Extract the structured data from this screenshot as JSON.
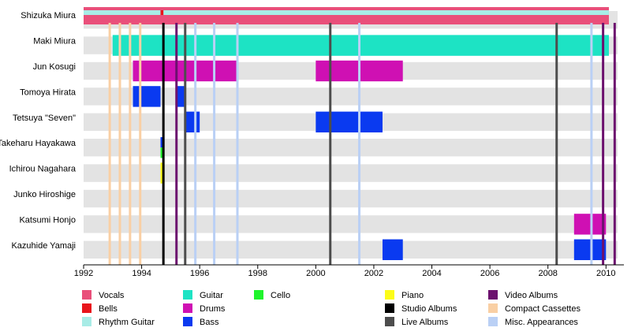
{
  "chart_data": {
    "type": "timeline",
    "title": "",
    "xlabel": "",
    "ylabel": "",
    "xlim": [
      1992,
      2010.4
    ],
    "x_ticks": [
      "1992",
      "1994",
      "1996",
      "1998",
      "2000",
      "2002",
      "2004",
      "2006",
      "2008",
      "2010"
    ],
    "grid": true,
    "legend_position": "bottom",
    "colors": {
      "Vocals": "#e94f7a",
      "Bells": "#e8141b",
      "Rhythm Guitar": "#a8ece6",
      "Guitar": "#1de3c4",
      "Drums": "#cf10b3",
      "Cello": "#1ff42c",
      "Bass": "#0a3af0",
      "Piano": "#fcfc18",
      "Studio Albums": "#000000",
      "Live Albums": "#4d4d4d",
      "Video Albums": "#6c116e",
      "Compact Cassettes": "#f9cfa4",
      "Misc. Appearances": "#bad0f5"
    },
    "legend": [
      [
        "Vocals",
        "Bells",
        "Rhythm Guitar"
      ],
      [
        "Guitar",
        "Drums",
        "Bass"
      ],
      [
        "Cello"
      ],
      [
        "Piano",
        "Studio Albums",
        "Live Albums"
      ],
      [
        "Video Albums",
        "Compact Cassettes",
        "Misc. Appearances"
      ]
    ],
    "members": [
      {
        "name": "Shizuka Miura",
        "bars": [
          {
            "role": "Vocals",
            "start": 1992,
            "end": 2010.1
          },
          {
            "role": "Rhythm Guitar",
            "start": 1992,
            "end": 2010.1
          },
          {
            "role": "Bells",
            "start": 1994.65,
            "end": 1994.75
          }
        ]
      },
      {
        "name": "Maki Miura",
        "bars": [
          {
            "role": "Guitar",
            "start": 1993.0,
            "end": 2010.1
          }
        ]
      },
      {
        "name": "Jun Kosugi",
        "bars": [
          {
            "role": "Drums",
            "start": 1993.7,
            "end": 1997.3
          },
          {
            "role": "Drums",
            "start": 2000.0,
            "end": 2003.0
          }
        ]
      },
      {
        "name": "Tomoya Hirata",
        "bars": [
          {
            "role": "Bass",
            "start": 1993.7,
            "end": 1994.65
          },
          {
            "role": "Bass",
            "start": 1995.2,
            "end": 1995.5
          }
        ]
      },
      {
        "name": "Tetsuya \"Seven\"",
        "bars": [
          {
            "role": "Bass",
            "start": 1995.5,
            "end": 1996.0
          },
          {
            "role": "Bass",
            "start": 2000.0,
            "end": 2002.3
          }
        ]
      },
      {
        "name": "Takeharu Hayakawa",
        "bars": [
          {
            "role": "Bass",
            "start": 1994.65,
            "end": 1994.75
          },
          {
            "role": "Cello",
            "start": 1994.65,
            "end": 1994.75
          }
        ]
      },
      {
        "name": "Ichirou Nagahara",
        "bars": [
          {
            "role": "Piano",
            "start": 1994.65,
            "end": 1994.75
          }
        ]
      },
      {
        "name": "Junko Hiroshige",
        "bars": [
          {
            "role": "Bass",
            "start": 1997.28,
            "end": 1997.32
          }
        ]
      },
      {
        "name": "Katsumi Honjo",
        "bars": [
          {
            "role": "Drums",
            "start": 2008.9,
            "end": 2010.0
          }
        ]
      },
      {
        "name": "Kazuhide Yamaji",
        "bars": [
          {
            "role": "Bass",
            "start": 2002.3,
            "end": 2003.0
          },
          {
            "role": "Bass",
            "start": 2008.9,
            "end": 2010.0
          }
        ]
      }
    ],
    "events": [
      {
        "type": "Compact Cassettes",
        "x": 1992.9
      },
      {
        "type": "Compact Cassettes",
        "x": 1993.25
      },
      {
        "type": "Compact Cassettes",
        "x": 1993.6
      },
      {
        "type": "Compact Cassettes",
        "x": 1993.95
      },
      {
        "type": "Studio Albums",
        "x": 1994.75
      },
      {
        "type": "Video Albums",
        "x": 1995.2
      },
      {
        "type": "Live Albums",
        "x": 1995.5
      },
      {
        "type": "Misc. Appearances",
        "x": 1995.85
      },
      {
        "type": "Misc. Appearances",
        "x": 1996.5
      },
      {
        "type": "Misc. Appearances",
        "x": 1997.3
      },
      {
        "type": "Live Albums",
        "x": 2000.5
      },
      {
        "type": "Misc. Appearances",
        "x": 2001.5
      },
      {
        "type": "Live Albums",
        "x": 2008.3
      },
      {
        "type": "Misc. Appearances",
        "x": 2009.5
      },
      {
        "type": "Video Albums",
        "x": 2009.9
      },
      {
        "type": "Video Albums",
        "x": 2010.3
      }
    ]
  }
}
